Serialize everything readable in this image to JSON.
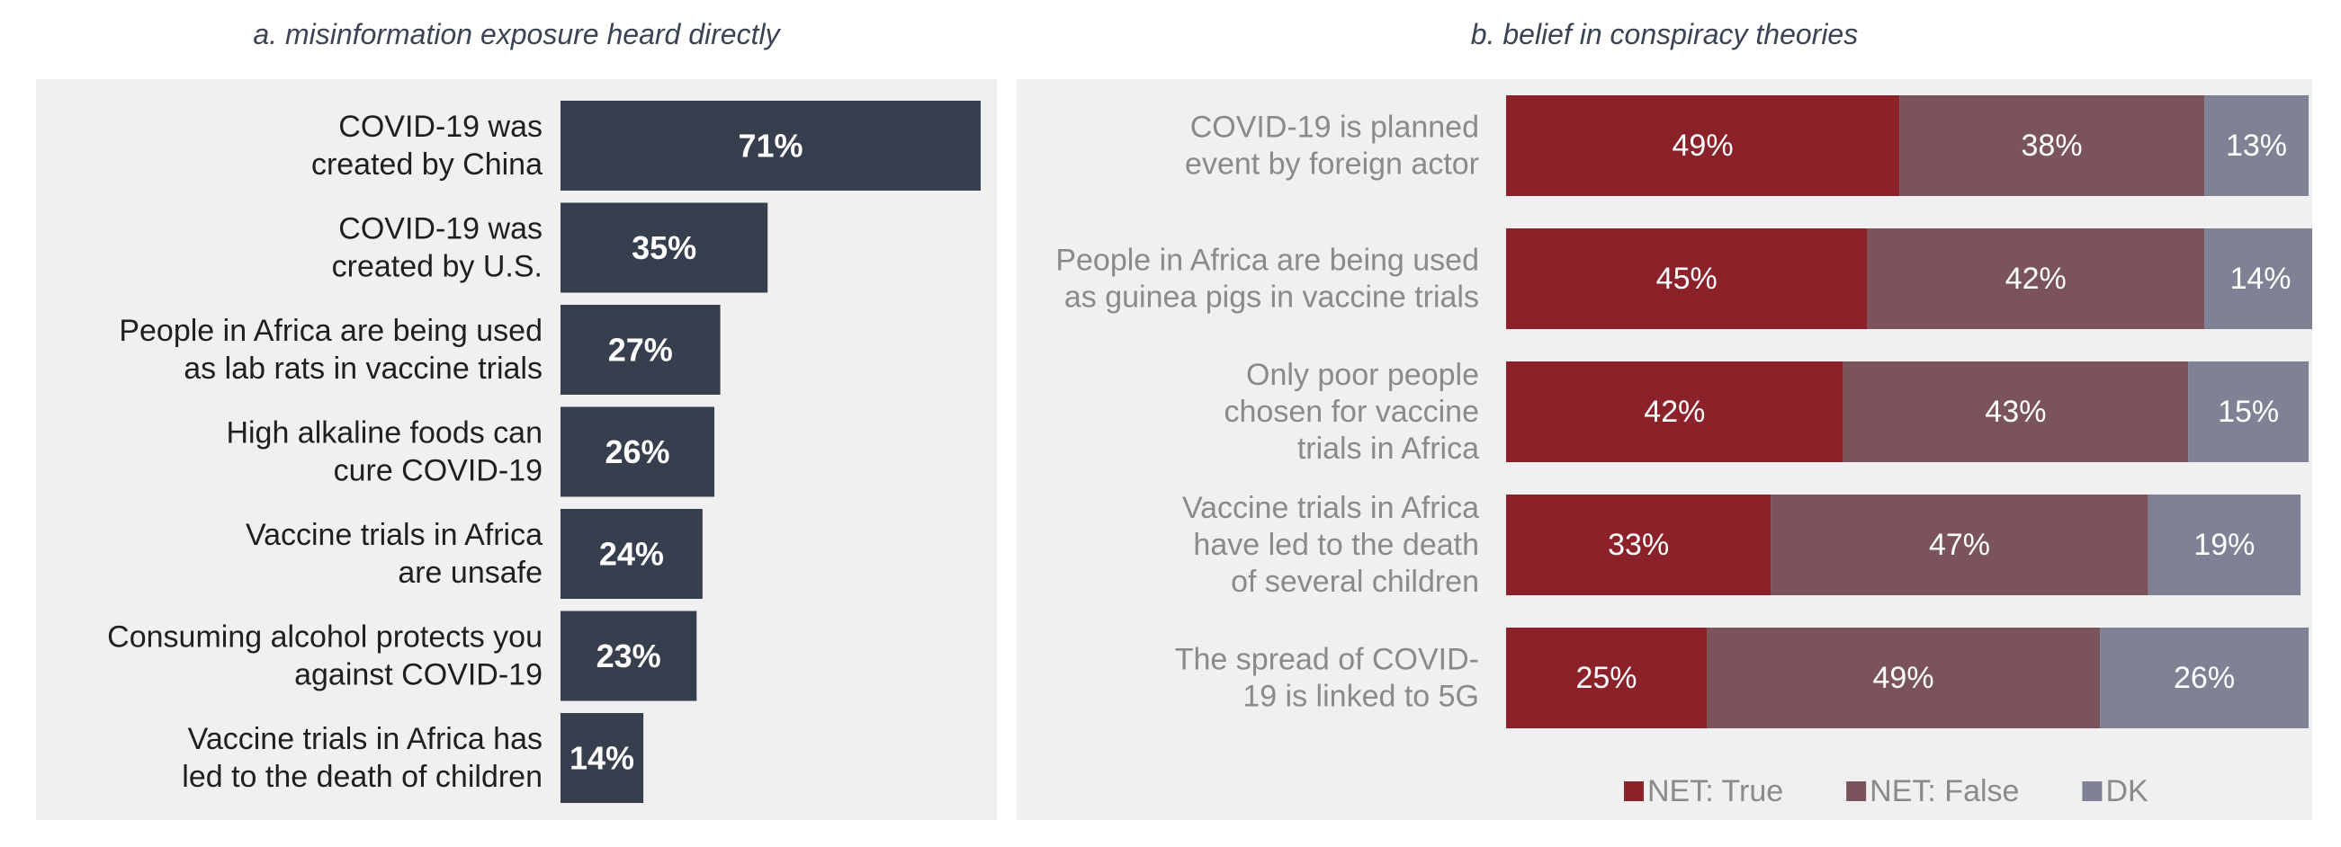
{
  "chart_data": [
    {
      "type": "bar",
      "orientation": "horizontal",
      "title": "a. misinformation exposure heard directly",
      "categories": [
        [
          "COVID-19 was",
          "created by China"
        ],
        [
          "COVID-19 was",
          "created by U.S."
        ],
        [
          "People in Africa are being used",
          "as lab rats in vaccine trials"
        ],
        [
          "High alkaline foods can",
          "cure COVID-19"
        ],
        [
          "Vaccine trials in Africa",
          "are unsafe"
        ],
        [
          "Consuming alcohol protects you",
          "against COVID-19"
        ],
        [
          "Vaccine trials in Africa has",
          "led to the death of children"
        ]
      ],
      "values": [
        71,
        35,
        27,
        26,
        24,
        23,
        14
      ],
      "value_labels": [
        "71%",
        "35%",
        "27%",
        "26%",
        "24%",
        "23%",
        "14%"
      ],
      "xlim": [
        0,
        71
      ],
      "grid": false,
      "colors": {
        "bar": "#373f4e",
        "label": "#ffffff",
        "category": "#1f1f1f",
        "background": "#f0f0f0"
      }
    },
    {
      "type": "bar",
      "orientation": "horizontal",
      "stacked": true,
      "title": "b. belief in conspiracy theories",
      "categories": [
        [
          "COVID-19 is planned",
          "event by foreign actor"
        ],
        [
          "People in Africa are being used",
          "as guinea pigs in vaccine trials"
        ],
        [
          "Only poor people",
          "chosen for vaccine",
          "trials in Africa"
        ],
        [
          "Vaccine trials in Africa",
          "have led to the death",
          "of several children"
        ],
        [
          "The spread of COVID-",
          "19 is linked to 5G"
        ]
      ],
      "series": [
        {
          "name": "NET: True",
          "values": [
            49,
            45,
            42,
            33,
            25
          ],
          "labels": [
            "49%",
            "45%",
            "42%",
            "33%",
            "25%"
          ],
          "color": "#8b2129"
        },
        {
          "name": "NET: False",
          "values": [
            38,
            42,
            43,
            47,
            49
          ],
          "labels": [
            "38%",
            "42%",
            "43%",
            "47%",
            "49%"
          ],
          "color": "#7a545a"
        },
        {
          "name": "DK",
          "values": [
            13,
            14,
            15,
            19,
            26
          ],
          "labels": [
            "13%",
            "14%",
            "15%",
            "19%",
            "26%"
          ],
          "color": "#7e8294"
        }
      ],
      "xlim": [
        0,
        100
      ],
      "grid": false,
      "legend": "bottom",
      "colors": {
        "label": "#ffffff",
        "category": "#8a8a8a",
        "background": "#f0f0f0"
      }
    }
  ]
}
